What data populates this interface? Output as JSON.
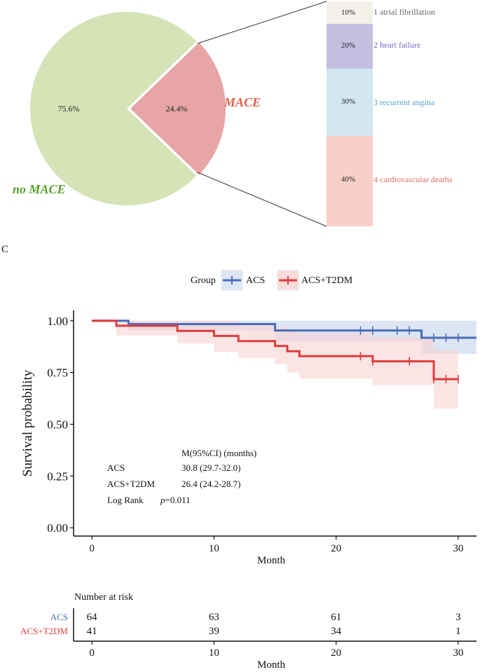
{
  "pie": {
    "type": "pie",
    "slices": [
      {
        "label": "no MACE",
        "value": 75.6,
        "value_label": "75.6%",
        "color": "#d5e3b7",
        "label_color": "#5aa02c"
      },
      {
        "label": "MACE",
        "value": 24.4,
        "value_label": "24.4%",
        "color": "#e8a5a5",
        "label_color": "#e0604c"
      }
    ]
  },
  "bar_breakdown": {
    "type": "stacked-bar",
    "segments": [
      {
        "label": "1 atrial fibrillation",
        "value": 10,
        "value_label": "10%",
        "color": "#f3f1e9",
        "text_color": "#666666"
      },
      {
        "label": "2 heart failure",
        "value": 20,
        "value_label": "20%",
        "color": "#c3bfdf",
        "text_color": "#7566c8"
      },
      {
        "label": "3 recurrent angina",
        "value": 30,
        "value_label": "30%",
        "color": "#d2e6f0",
        "text_color": "#5b9ec4"
      },
      {
        "label": "4 cardiovascular deaths",
        "value": 40,
        "value_label": "40%",
        "color": "#f8cfc9",
        "text_color": "#e07060"
      }
    ]
  },
  "panel_label": "C",
  "chart_data": {
    "type": "line",
    "subtype": "kaplan-meier",
    "xlabel": "Month",
    "ylabel": "Survival probability",
    "xlim": [
      -1.5,
      31.5
    ],
    "ylim": [
      -0.04,
      1.05
    ],
    "x_ticks": [
      0,
      10,
      20,
      30
    ],
    "y_ticks": [
      0.0,
      0.25,
      0.5,
      0.75,
      1.0
    ],
    "x_tick_labels": [
      "0",
      "10",
      "20",
      "30"
    ],
    "y_tick_labels": [
      "0.00",
      "0.25",
      "0.50",
      "0.75",
      "1.00"
    ],
    "legend_title": "Group",
    "legend_position": "top",
    "series": [
      {
        "name": "ACS",
        "color": "#4a6db8",
        "band_color": "#c5d4ec",
        "steps": [
          [
            0,
            1.0
          ],
          [
            3,
            0.984
          ],
          [
            15,
            0.953
          ],
          [
            27,
            0.918
          ],
          [
            31.5,
            0.918
          ]
        ],
        "lower": [
          [
            0,
            1.0
          ],
          [
            3,
            0.953
          ],
          [
            15,
            0.9
          ],
          [
            27,
            0.84
          ],
          [
            31.5,
            0.84
          ]
        ],
        "upper": [
          [
            0,
            1.0
          ],
          [
            3,
            1.0
          ],
          [
            15,
            1.0
          ],
          [
            27,
            1.0
          ],
          [
            31.5,
            1.0
          ]
        ],
        "censor": [
          22,
          23,
          25,
          26,
          28,
          29,
          30
        ]
      },
      {
        "name": "ACS+T2DM",
        "color": "#e03c3c",
        "band_color": "#f8d2d2",
        "steps": [
          [
            0,
            1.0
          ],
          [
            2,
            0.976
          ],
          [
            7,
            0.951
          ],
          [
            10,
            0.927
          ],
          [
            12,
            0.902
          ],
          [
            15,
            0.878
          ],
          [
            16,
            0.853
          ],
          [
            17,
            0.829
          ],
          [
            23,
            0.804
          ],
          [
            28,
            0.718
          ],
          [
            30,
            0.718
          ]
        ],
        "lower": [
          [
            0,
            1.0
          ],
          [
            2,
            0.93
          ],
          [
            7,
            0.89
          ],
          [
            10,
            0.85
          ],
          [
            12,
            0.82
          ],
          [
            15,
            0.79
          ],
          [
            16,
            0.75
          ],
          [
            17,
            0.72
          ],
          [
            23,
            0.69
          ],
          [
            28,
            0.575
          ],
          [
            30,
            0.575
          ]
        ],
        "upper": [
          [
            0,
            1.0
          ],
          [
            2,
            1.0
          ],
          [
            7,
            1.0
          ],
          [
            10,
            1.0
          ],
          [
            12,
            0.99
          ],
          [
            15,
            0.97
          ],
          [
            16,
            0.95
          ],
          [
            17,
            0.94
          ],
          [
            23,
            0.92
          ],
          [
            28,
            0.86
          ],
          [
            30,
            0.86
          ]
        ],
        "censor": [
          22,
          23,
          26,
          28,
          29,
          30
        ]
      }
    ],
    "annotation": {
      "header": "M(95%CI) (months)",
      "rows": [
        {
          "label": "ACS",
          "value": "30.8 (29.7-32.0)"
        },
        {
          "label": "ACS+T2DM",
          "value": "26.4 (24.2-28.7)"
        }
      ],
      "test_label": "Log Rank",
      "p_symbol": "p",
      "p_value": "=0.011"
    }
  },
  "risk_table": {
    "title": "Number at risk",
    "xlabel": "Month",
    "x_tick_labels": [
      "0",
      "10",
      "20",
      "30"
    ],
    "rows": [
      {
        "label": "ACS",
        "color": "#4a6db8",
        "values": [
          "64",
          "63",
          "61",
          "3"
        ]
      },
      {
        "label": "ACS+T2DM",
        "color": "#e03c3c",
        "values": [
          "41",
          "39",
          "34",
          "1"
        ]
      }
    ]
  }
}
